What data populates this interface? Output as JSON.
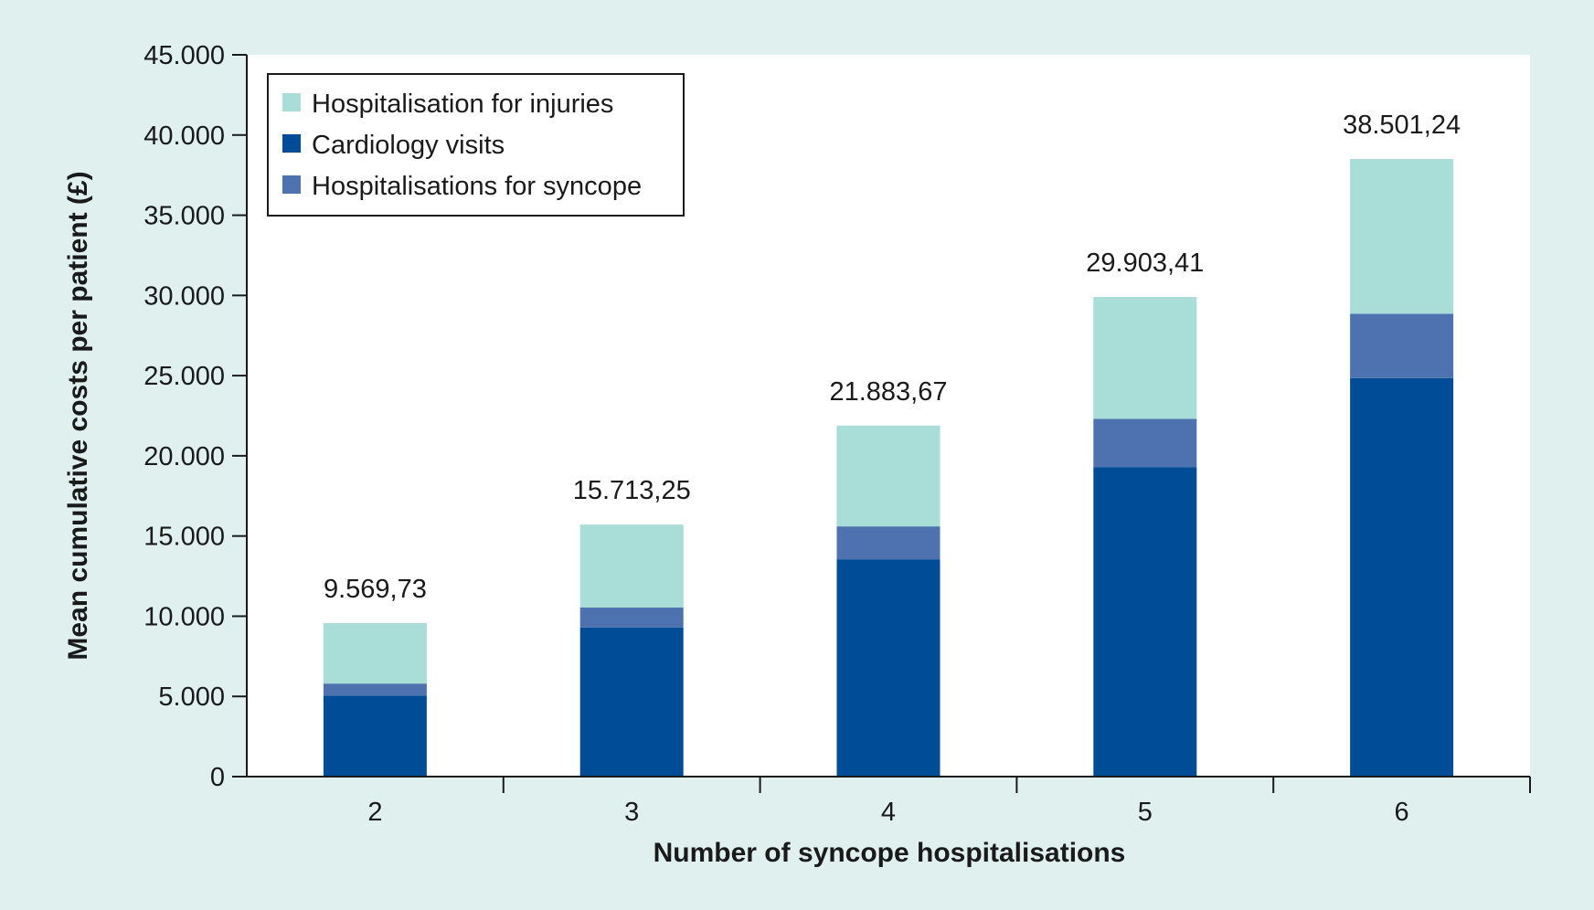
{
  "chart_data": {
    "type": "bar",
    "stacked": true,
    "categories": [
      "2",
      "3",
      "4",
      "5",
      "6"
    ],
    "series": [
      {
        "name": "Cardiology visits",
        "color": "#004c97",
        "values": [
          5050,
          9300,
          13550,
          19300,
          24850
        ]
      },
      {
        "name": "Hospitalisations for syncope",
        "color": "#4e72b0",
        "values": [
          750,
          1250,
          2050,
          3000,
          4000
        ]
      },
      {
        "name": "Hospitalisation for injuries",
        "color": "#a9ddd7",
        "values": [
          3769.73,
          5163.25,
          6283.67,
          7603.41,
          9651.24
        ]
      }
    ],
    "totals_labels": [
      "9.569,73",
      "15.713,25",
      "21.883,67",
      "29.903,41",
      "38.501,24"
    ],
    "legend_order": [
      "Hospitalisation for injuries",
      "Cardiology visits",
      "Hospitalisations for syncope"
    ],
    "legend_position": "top-left",
    "xlabel": "Number of syncope hospitalisations",
    "ylabel": "Mean cumulative costs per patient (£)",
    "ylim": [
      0,
      45000
    ],
    "yticks": [
      0,
      5000,
      10000,
      15000,
      20000,
      25000,
      30000,
      35000,
      40000,
      45000
    ],
    "ytick_labels": [
      "0",
      "5.000",
      "10.000",
      "15.000",
      "20.000",
      "25.000",
      "30.000",
      "35.000",
      "40.000",
      "45.000"
    ],
    "grid": false,
    "background": "#e0f0ef",
    "plot_background": "#ffffff"
  }
}
